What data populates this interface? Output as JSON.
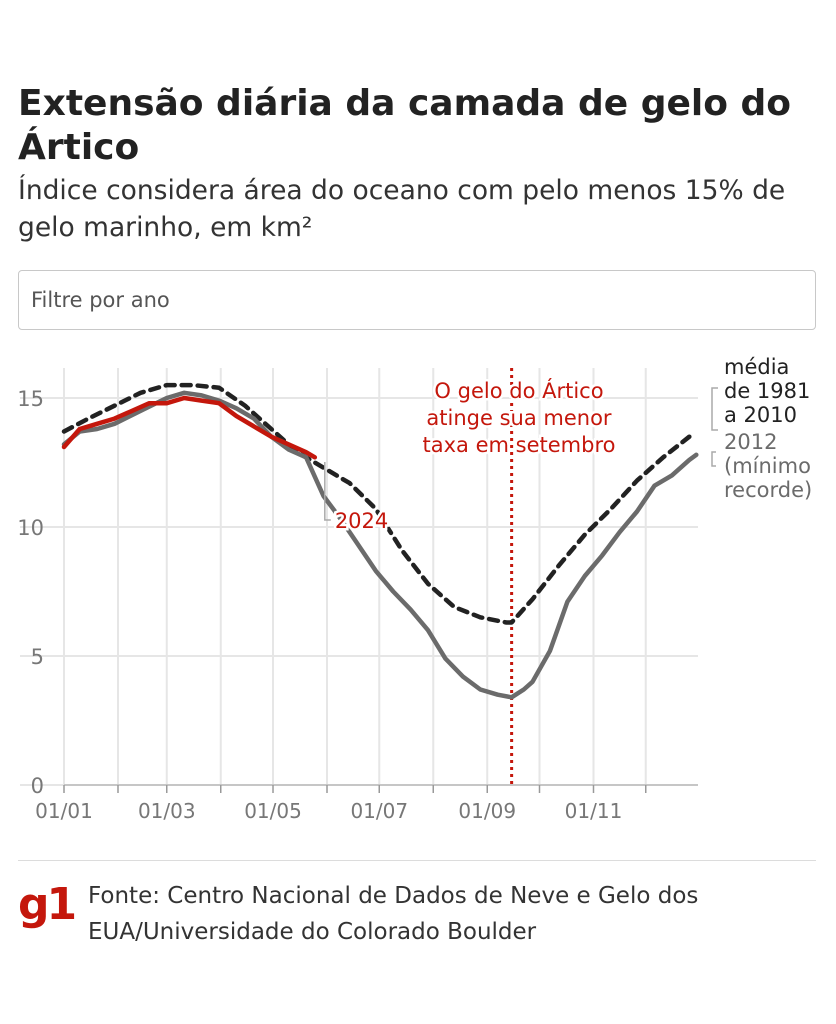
{
  "header": {
    "title": "Extensão diária da camada de gelo do Ártico",
    "subtitle": "Índice considera área do oceano com pelo menos 15% de gelo marinho, em km²"
  },
  "filter": {
    "placeholder": "Filtre por ano"
  },
  "footer": {
    "logo": "g1",
    "source": "Fonte: Centro Nacional de Dados de Neve e Gelo dos EUA/Universidade do Colorado Boulder"
  },
  "colors": {
    "red": "#c4170c",
    "gray": "#6b6b6b",
    "black": "#222222",
    "grid": "#e6e6e6"
  },
  "chart_data": {
    "type": "line",
    "x_unit": "day of year",
    "xlim": [
      1,
      365
    ],
    "ylim": [
      0,
      16
    ],
    "grid": true,
    "xtick_labels": [
      "01/01",
      "01/03",
      "01/05",
      "01/07",
      "01/09",
      "01/11"
    ],
    "xtick_days": [
      1,
      60,
      121,
      182,
      244,
      305
    ],
    "minor_xtick_days": [
      32,
      91,
      152,
      213,
      274,
      335
    ],
    "yticks": [
      0,
      5,
      10,
      15
    ],
    "series": [
      {
        "name": "média de 1981 a 2010",
        "style": "dashed",
        "color": "#222222",
        "x": [
          1,
          15,
          30,
          45,
          60,
          75,
          90,
          105,
          120,
          135,
          150,
          165,
          180,
          195,
          210,
          225,
          240,
          255,
          258,
          270,
          285,
          300,
          315,
          330,
          345,
          360
        ],
        "y": [
          13.7,
          14.2,
          14.7,
          15.2,
          15.5,
          15.5,
          15.4,
          14.7,
          13.8,
          12.9,
          12.3,
          11.7,
          10.7,
          9.1,
          7.8,
          6.9,
          6.5,
          6.3,
          6.3,
          7.2,
          8.5,
          9.7,
          10.7,
          11.8,
          12.7,
          13.5
        ]
      },
      {
        "name": "2012 (mínimo recorde)",
        "style": "solid",
        "color": "#6b6b6b",
        "x": [
          1,
          10,
          20,
          30,
          45,
          60,
          70,
          80,
          90,
          100,
          110,
          120,
          130,
          140,
          150,
          160,
          170,
          180,
          190,
          200,
          210,
          220,
          230,
          240,
          250,
          258,
          265,
          270,
          280,
          290,
          300,
          310,
          320,
          330,
          340,
          350,
          360,
          364
        ],
        "y": [
          13.2,
          13.7,
          13.8,
          14.0,
          14.5,
          15.0,
          15.2,
          15.1,
          14.9,
          14.6,
          14.2,
          13.5,
          13.0,
          12.7,
          11.2,
          10.3,
          9.3,
          8.3,
          7.5,
          6.8,
          6.0,
          4.9,
          4.2,
          3.7,
          3.5,
          3.4,
          3.7,
          4.0,
          5.2,
          7.1,
          8.1,
          8.9,
          9.8,
          10.6,
          11.6,
          12.0,
          12.6,
          12.8
        ]
      },
      {
        "name": "2024",
        "style": "solid",
        "color": "#c4170c",
        "x": [
          1,
          10,
          20,
          30,
          40,
          50,
          60,
          70,
          80,
          90,
          100,
          110,
          120,
          130,
          140,
          145
        ],
        "y": [
          13.1,
          13.8,
          14.0,
          14.2,
          14.5,
          14.8,
          14.8,
          15.0,
          14.9,
          14.8,
          14.3,
          13.9,
          13.5,
          13.2,
          12.9,
          12.7
        ]
      }
    ],
    "labels": {
      "average": [
        "média",
        "de 1981",
        "a 2010"
      ],
      "record": [
        "2012",
        "(mínimo",
        "recorde)"
      ],
      "current": "2024"
    },
    "annotation": {
      "day": 258,
      "text": [
        "O gelo do Ártico",
        "atinge sua menor",
        "taxa em setembro"
      ]
    }
  }
}
